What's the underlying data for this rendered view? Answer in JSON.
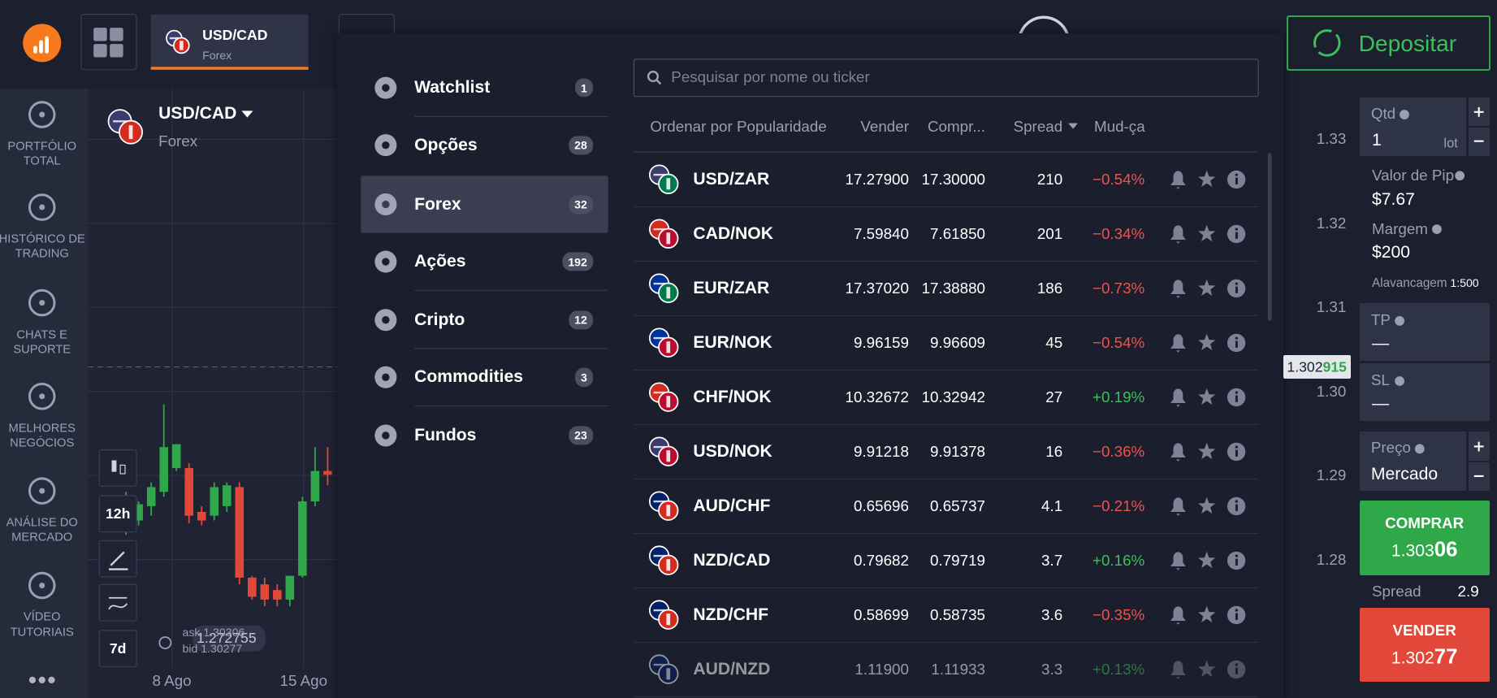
{
  "header": {
    "asset_tab": {
      "name": "USD/CAD",
      "market": "Forex"
    },
    "deposit_button": "Depositar"
  },
  "sidebar": {
    "items": [
      [
        "PORTFÓLIO",
        "TOTAL"
      ],
      [
        "HISTÓRICO DE",
        "TRADING"
      ],
      [
        "CHATS E",
        "SUPORTE"
      ],
      [
        "MELHORES",
        "NEGÓCIOS"
      ],
      [
        "ANÁLISE DO",
        "MERCADO"
      ],
      [
        "VÍDEO",
        "TUTORIAIS"
      ]
    ]
  },
  "chart": {
    "type": "candlestick",
    "asset": "USD/CAD",
    "market": "Forex",
    "timeframes": [
      "12h",
      "7d"
    ],
    "ylim": [
      1.267,
      1.336
    ],
    "yticks": [
      1.28,
      1.29,
      {
        "value": 1.3,
        "label": "1.30"
      },
      1.31,
      1.32,
      1.33
    ],
    "x_labels": [
      "8 Ago",
      "15 Ago"
    ],
    "current_price": 1.302915,
    "current_price_label": [
      "1.302",
      "915"
    ],
    "hover_price": "1.272755",
    "ask": "ask 1.30306",
    "bid": "bid 1.30277",
    "candles": [
      {
        "open": 1.28408,
        "high": 1.28805,
        "low": 1.28295,
        "close": 1.28748
      },
      {
        "open": 1.28465,
        "high": 1.28692,
        "low": 1.28408,
        "close": 1.28658
      },
      {
        "open": 1.28635,
        "high": 1.28918,
        "low": 1.28522,
        "close": 1.28862
      },
      {
        "open": 1.28805,
        "high": 1.29848,
        "low": 1.28748,
        "close": 1.29338
      },
      {
        "open": 1.29088,
        "high": 1.29372,
        "low": 1.29054,
        "close": 1.29372
      },
      {
        "open": 1.29088,
        "high": 1.29145,
        "low": 1.28431,
        "close": 1.28522
      },
      {
        "open": 1.28567,
        "high": 1.28635,
        "low": 1.28408,
        "close": 1.28465
      },
      {
        "open": 1.28522,
        "high": 1.28918,
        "low": 1.28465,
        "close": 1.28862
      },
      {
        "open": 1.28635,
        "high": 1.28918,
        "low": 1.28567,
        "close": 1.28884
      },
      {
        "open": 1.28862,
        "high": 1.28918,
        "low": 1.27705,
        "close": 1.27785
      },
      {
        "open": 1.27785,
        "high": 1.27807,
        "low": 1.27524,
        "close": 1.27558
      },
      {
        "open": 1.27705,
        "high": 1.27785,
        "low": 1.27444,
        "close": 1.27524
      },
      {
        "open": 1.27637,
        "high": 1.27705,
        "low": 1.27444,
        "close": 1.27524
      },
      {
        "open": 1.27524,
        "high": 1.27807,
        "low": 1.27444,
        "close": 1.27807
      },
      {
        "open": 1.27807,
        "high": 1.28748,
        "low": 1.27785,
        "close": 1.28692
      },
      {
        "open": 1.28692,
        "high": 1.29338,
        "low": 1.28635,
        "close": 1.29054
      },
      {
        "open": 1.29054,
        "high": 1.29338,
        "low": 1.28884,
        "close": 1.29009
      }
    ]
  },
  "menu": {
    "items": [
      {
        "label": "Watchlist",
        "count": "1"
      },
      {
        "label": "Opções",
        "count": "28"
      },
      {
        "label": "Forex",
        "count": "32",
        "selected": true
      },
      {
        "label": "Ações",
        "count": "192"
      },
      {
        "label": "Cripto",
        "count": "12"
      },
      {
        "label": "Commodities",
        "count": "3"
      },
      {
        "label": "Fundos",
        "count": "23"
      }
    ]
  },
  "market_list": {
    "search_placeholder": "Pesquisar por nome ou ticker",
    "columns": [
      "Ordenar por Popularidade",
      "Vender",
      "Compr...",
      "Spread",
      "Mud-ça"
    ],
    "rows": [
      {
        "pair": "USD/ZAR",
        "sell": "17.27900",
        "buy": "17.30000",
        "spread": "210",
        "change": "−0.54%"
      },
      {
        "pair": "CAD/NOK",
        "sell": "7.59840",
        "buy": "7.61850",
        "spread": "201",
        "change": "−0.34%"
      },
      {
        "pair": "EUR/ZAR",
        "sell": "17.37020",
        "buy": "17.38880",
        "spread": "186",
        "change": "−0.73%"
      },
      {
        "pair": "EUR/NOK",
        "sell": "9.96159",
        "buy": "9.96609",
        "spread": "45",
        "change": "−0.54%"
      },
      {
        "pair": "CHF/NOK",
        "sell": "10.32672",
        "buy": "10.32942",
        "spread": "27",
        "change": "+0.19%"
      },
      {
        "pair": "USD/NOK",
        "sell": "9.91218",
        "buy": "9.91378",
        "spread": "16",
        "change": "−0.36%"
      },
      {
        "pair": "AUD/CHF",
        "sell": "0.65696",
        "buy": "0.65737",
        "spread": "4.1",
        "change": "−0.21%"
      },
      {
        "pair": "NZD/CAD",
        "sell": "0.79682",
        "buy": "0.79719",
        "spread": "3.7",
        "change": "+0.16%"
      },
      {
        "pair": "NZD/CHF",
        "sell": "0.58699",
        "buy": "0.58735",
        "spread": "3.6",
        "change": "−0.35%"
      },
      {
        "pair": "AUD/NZD",
        "sell": "1.11900",
        "buy": "1.11933",
        "spread": "3.3",
        "change": "+0.13%"
      }
    ]
  },
  "trade_panel": {
    "quantity": {
      "label": "Qtd",
      "value": "1",
      "unit": "lot"
    },
    "pip_value": {
      "label": "Valor de Pip",
      "value": "$7.67"
    },
    "margin": {
      "label": "Margem",
      "value": "$200"
    },
    "leverage": {
      "label": "Alavancagem",
      "value": "1:500"
    },
    "tp": {
      "label": "TP",
      "value": "—"
    },
    "sl": {
      "label": "SL",
      "value": "—"
    },
    "price": {
      "label": "Preço",
      "value": "Mercado"
    },
    "buy": {
      "label": "COMPRAR",
      "price": [
        "1.303",
        "06"
      ]
    },
    "spread": {
      "label": "Spread",
      "value": "2.9"
    },
    "sell": {
      "label": "VENDER",
      "price": [
        "1.302",
        "77"
      ]
    }
  }
}
